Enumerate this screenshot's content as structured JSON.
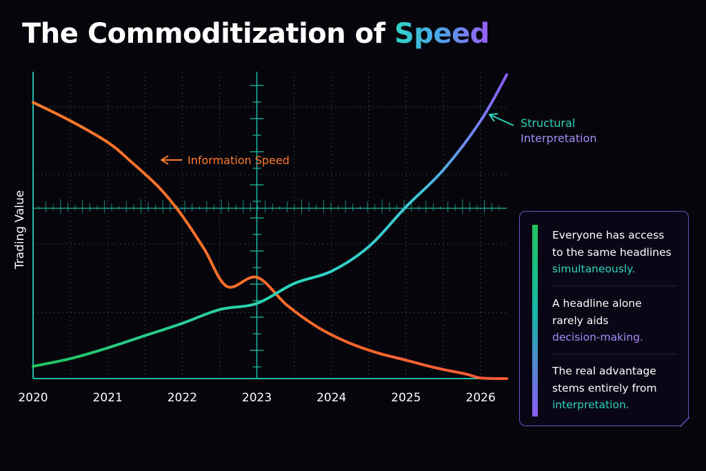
{
  "title": {
    "prefix": "The Commoditization of ",
    "accent": "Speed"
  },
  "colors": {
    "background": "#05050b",
    "axis": "#1fbfa6",
    "grid": "#234a44",
    "info_speed": "#ff7a2a",
    "structural_start": "#22c55e",
    "structural_mid": "#2dd4bf",
    "structural_end": "#8b5cf6",
    "panel_border": "#6e52c8"
  },
  "chart_data": {
    "type": "line",
    "ylabel": "Trading Value",
    "xlabel": "",
    "x_ticks": [
      "2020",
      "2021",
      "2022",
      "2023",
      "2024",
      "2025",
      "2026"
    ],
    "xlim": [
      2020,
      2026.35
    ],
    "ylim": [
      0,
      100
    ],
    "grid": true,
    "series": [
      {
        "name": "Information Speed",
        "color": "#ff7a2a",
        "x": [
          2020,
          2020.5,
          2021,
          2021.3,
          2021.7,
          2022,
          2022.3,
          2022.6,
          2023,
          2023.4,
          2023.8,
          2024.2,
          2024.6,
          2025,
          2025.4,
          2025.8,
          2026,
          2026.35
        ],
        "y": [
          90,
          84,
          77,
          71,
          62,
          53,
          42,
          30,
          33,
          24,
          17,
          12,
          8.5,
          6,
          3.5,
          1.5,
          0.2,
          0
        ]
      },
      {
        "name": "Structural Interpretation",
        "color": "#2dd4bf",
        "x": [
          2020,
          2020.5,
          2021,
          2021.5,
          2022,
          2022.5,
          2023,
          2023.5,
          2024,
          2024.5,
          2025,
          2025.5,
          2026,
          2026.35
        ],
        "y": [
          4,
          6.5,
          10,
          14,
          18,
          22.5,
          24.5,
          31,
          35,
          43,
          56,
          68,
          84,
          99
        ]
      }
    ],
    "annotations": [
      {
        "text": "Information  Speed",
        "series": "Information Speed",
        "color": "#ff7a2a"
      },
      {
        "line1": "Structural",
        "line2": "Interpretation",
        "series": "Structural Interpretation"
      }
    ]
  },
  "panel": {
    "items": [
      {
        "lines": [
          "Everyone has access",
          "to the same headlines"
        ],
        "highlight": "simultaneously.",
        "highlight_color": "teal"
      },
      {
        "lines": [
          "A headline alone",
          "rarely aids"
        ],
        "highlight": "decision-making.",
        "highlight_color": "purple"
      },
      {
        "lines": [
          "The real advantage",
          "stems entirely from"
        ],
        "highlight": "interpretation.",
        "highlight_color": "teal"
      }
    ]
  }
}
